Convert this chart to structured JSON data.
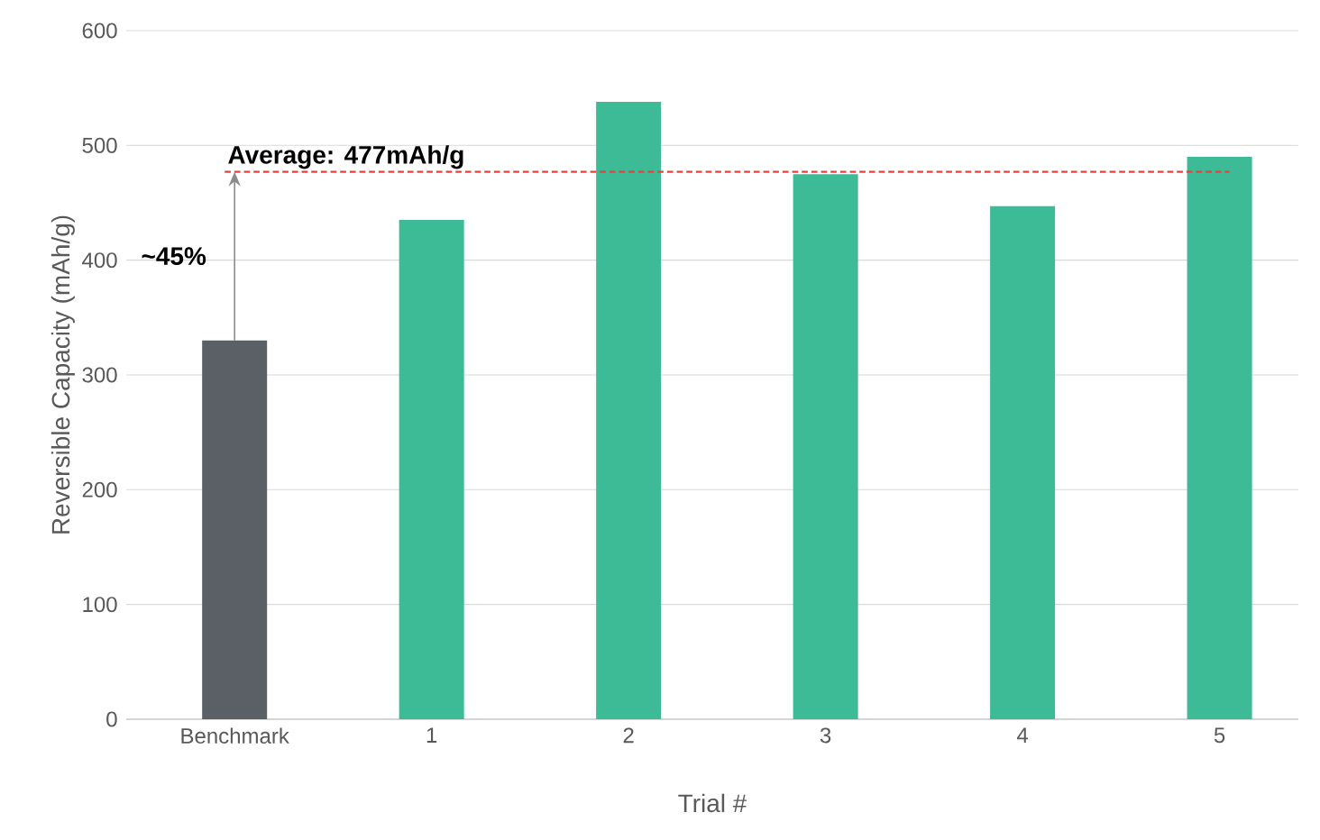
{
  "chart_data": {
    "type": "bar",
    "xlabel": "Trial #",
    "ylabel": "Reversible Capacity (mAh/g)",
    "categories": [
      "Benchmark",
      "1",
      "2",
      "3",
      "4",
      "5"
    ],
    "values": [
      330,
      435,
      538,
      475,
      447,
      490
    ],
    "colors": [
      "#5a6066",
      "#3dbb96",
      "#3dbb96",
      "#3dbb96",
      "#3dbb96",
      "#3dbb96"
    ],
    "ylim": [
      0,
      600
    ],
    "yticks": [
      0,
      100,
      200,
      300,
      400,
      500,
      600
    ],
    "grid": "y",
    "ref_lines": [
      {
        "axis": "y",
        "value": 477,
        "label": "Average: 477mAh/g",
        "color": "#e8413c",
        "line_style": "dashed"
      }
    ],
    "annotations": [
      "~45%"
    ]
  }
}
